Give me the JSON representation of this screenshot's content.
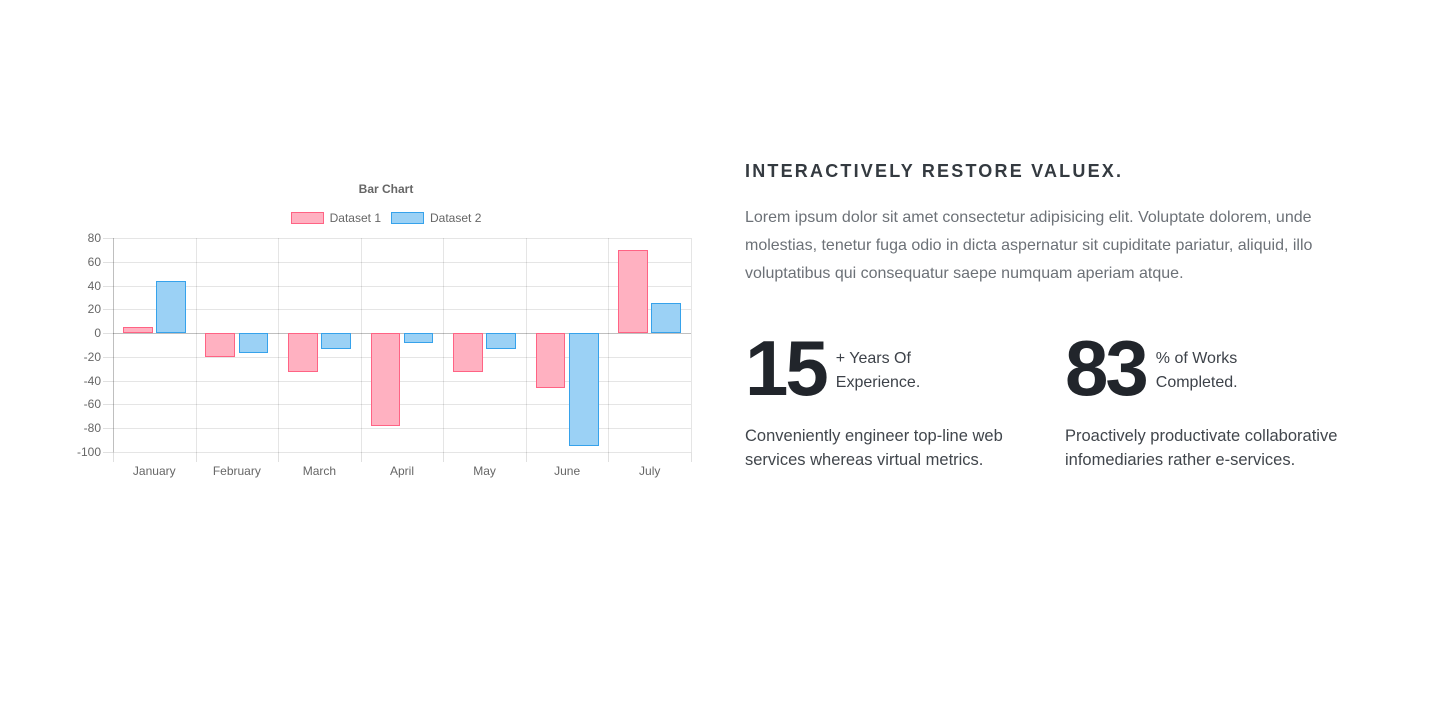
{
  "chart_data": {
    "type": "bar",
    "title": "Bar Chart",
    "categories": [
      "January",
      "February",
      "March",
      "April",
      "May",
      "June",
      "July"
    ],
    "series": [
      {
        "name": "Dataset 1",
        "fill": "#ffb1c1",
        "border": "#ff6384",
        "values": [
          5,
          -20,
          -33,
          -78,
          -33,
          -46,
          70
        ]
      },
      {
        "name": "Dataset 2",
        "fill": "#9bd1f5",
        "border": "#36a2eb",
        "values": [
          44,
          -17,
          -13,
          -8,
          -13,
          -95,
          25
        ]
      }
    ],
    "ylim": [
      -100,
      80
    ],
    "ytick_step": 20,
    "grid": true,
    "legend_position": "top",
    "tick_color": "#666666",
    "grid_color": "rgba(0,0,0,0.1)",
    "zero_line_color": "rgba(0,0,0,0.25)"
  },
  "content": {
    "heading": "INTERACTIVELY RESTORE VALUEX.",
    "paragraph": "Lorem ipsum dolor sit amet consectetur adipisicing elit. Voluptate dolorem, unde molestias, tenetur fuga odio in dicta aspernatur sit cupiditate pariatur, aliquid, illo voluptatibus qui consequatur saepe numquam aperiam atque.",
    "stats": [
      {
        "value": "15",
        "label_lines": [
          "+ Years Of",
          "Experience."
        ],
        "description": "Conveniently engineer top-line web services whereas virtual metrics."
      },
      {
        "value": "83",
        "label_lines": [
          "% of Works",
          "Completed."
        ],
        "description": "Proactively productivate collaborative infomediaries rather e-services."
      }
    ]
  }
}
